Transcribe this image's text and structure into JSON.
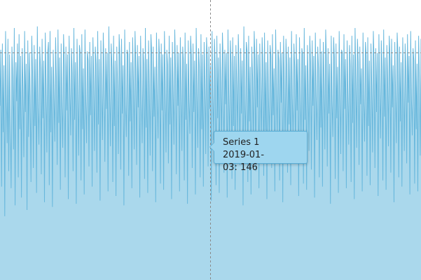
{
  "chart_data": {
    "type": "area",
    "x_start": "2018-12-05",
    "x_end": "2019-02-01",
    "ylim": [
      0,
      180
    ],
    "grid": false,
    "colors": {
      "line": "#67b7dc",
      "fill": "#aad8ec",
      "cursor": "#8a8a8a"
    },
    "series": [
      {
        "name": "Series 1",
        "values": [
          112,
          148,
          60,
          152,
          95,
          138,
          41,
          160,
          120,
          88,
          155,
          70,
          145,
          102,
          59,
          150,
          131,
          84,
          162,
          48,
          140,
          115,
          152,
          66,
          158,
          97,
          144,
          53,
          149,
          123,
          79,
          160,
          108,
          139,
          45,
          154,
          92,
          146,
          118,
          63,
          157,
          134,
          72,
          151,
          99,
          142,
          56,
          163,
          111,
          87,
          150,
          136,
          68,
          155,
          104,
          141,
          50,
          159,
          126,
          82,
          146,
          153,
          61,
          160,
          95,
          137,
          47,
          148,
          119,
          89,
          156,
          130,
          74,
          161,
          101,
          143,
          58,
          152,
          114,
          85,
          158,
          138,
          66,
          150,
          109,
          145,
          52,
          157,
          124,
          93,
          149,
          133,
          70,
          162,
          103,
          140,
          49,
          155,
          121,
          80,
          151,
          146,
          64,
          158,
          97,
          136,
          55,
          161,
          116,
          88,
          147,
          141,
          73,
          153,
          106,
          144,
          60,
          156,
          128,
          83,
          150,
          139,
          69,
          160,
          100,
          142,
          51,
          154,
          118,
          90,
          159,
          134,
          76,
          149,
          110,
          146,
          57,
          163,
          122,
          86,
          152,
          137,
          63,
          157,
          99,
          141,
          54,
          150,
          125,
          81,
          158,
          143,
          71,
          155,
          107,
          138,
          48,
          161,
          113,
          92,
          148,
          145,
          67,
          153,
          102,
          140,
          59,
          156,
          127,
          84,
          160,
          136,
          74,
          151,
          111,
          144,
          53,
          157,
          119,
          88,
          149,
          139,
          65,
          162,
          98,
          142,
          56,
          154,
          124,
          80,
          158,
          146,
          70,
          150,
          105,
          137,
          50,
          159,
          117,
          91,
          155,
          141,
          62,
          152,
          109,
          145,
          58,
          160,
          128,
          82,
          148,
          138,
          75,
          157,
          100,
          143,
          52,
          153,
          121,
          87,
          161,
          135,
          68,
          151,
          112,
          146,
          57,
          156,
          126,
          83,
          150,
          140,
          64,
          159,
          103,
          139,
          49,
          154,
          115,
          94,
          157,
          144,
          72,
          152,
          108,
          141,
          55,
          162,
          123,
          85,
          149,
          137,
          66,
          158,
          97,
          145,
          60,
          153,
          129,
          81,
          156,
          142,
          73,
          150,
          110,
          138,
          51,
          160,
          118,
          90,
          155,
          136,
          61,
          157,
          104,
          143,
          56,
          152,
          127,
          86,
          159,
          140,
          69,
          148,
          113,
          146,
          53,
          161,
          120,
          84,
          154,
          139,
          65,
          156,
          99,
          144,
          58,
          151,
          125,
          92,
          158,
          135,
          74,
          149,
          107,
          141,
          48,
          163,
          116,
          87,
          153,
          147,
          63,
          157,
          102,
          137,
          55,
          150,
          130,
          80,
          160,
          142,
          70,
          155,
          111,
          145,
          59,
          152,
          122,
          89,
          156,
          138,
          67,
          159,
          96,
          140,
          52,
          154,
          119,
          85,
          151,
          144,
          72,
          158,
          106,
          136,
          57,
          161,
          124,
          91,
          148,
          141,
          64,
          153,
          114,
          146,
          50,
          157,
          127,
          82,
          155,
          139,
          69,
          150,
          100,
          143,
          61,
          160,
          117,
          88,
          152,
          137,
          75,
          158,
          109,
          142,
          54,
          156,
          121,
          86,
          149,
          145,
          62,
          162,
          103,
          138,
          58,
          151,
          126,
          83,
          157,
          140,
          71,
          154,
          112,
          144,
          53,
          159,
          118,
          90,
          150,
          136,
          66,
          155,
          98,
          147,
          60,
          153,
          129,
          84,
          161,
          141,
          73,
          149,
          107,
          139,
          49,
          157,
          115,
          92,
          156,
          143,
          65,
          152,
          104,
          137,
          56,
          160,
          123,
          81,
          148,
          146,
          70,
          158,
          110,
          142,
          59,
          154,
          120,
          87,
          151,
          138,
          63,
          157,
          101,
          145,
          52,
          162,
          128,
          85,
          155,
          140,
          74,
          150,
          113,
          136,
          57,
          159,
          117,
          89,
          153,
          144,
          67,
          156,
          99,
          141,
          61,
          152,
          125,
          82,
          160,
          139,
          72,
          149,
          108,
          146,
          54,
          158,
          121,
          91,
          154,
          137,
          64,
          161,
          105,
          143,
          58,
          151,
          130,
          86,
          157,
          142,
          69,
          155,
          111,
          138,
          50,
          153,
          119,
          88,
          159,
          145,
          66,
          150,
          102,
          140,
          60,
          156,
          124,
          83,
          152,
          136,
          75,
          158,
          114,
          144,
          55,
          160,
          116,
          93,
          149,
          141,
          62,
          154,
          97,
          139,
          57,
          157,
          127,
          80,
          155
        ]
      }
    ]
  },
  "tooltip": {
    "series": "Series 1",
    "date": "2019-01-03",
    "value": "146"
  }
}
